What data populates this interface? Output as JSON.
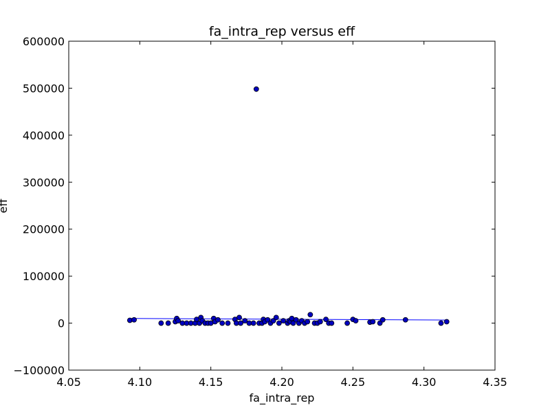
{
  "chart_data": {
    "type": "scatter",
    "title": "fa_intra_rep versus eff",
    "xlabel": "fa_intra_rep",
    "ylabel": "eff",
    "xlim": [
      4.05,
      4.35
    ],
    "ylim": [
      -100000,
      600000
    ],
    "x_ticks": [
      "4.05",
      "4.10",
      "4.15",
      "4.20",
      "4.25",
      "4.30",
      "4.35"
    ],
    "y_ticks": [
      "600000",
      "500000",
      "400000",
      "300000",
      "200000",
      "100000",
      "0",
      "−100000"
    ],
    "grid": false,
    "colors": {
      "marker": "#0000bf",
      "marker_edge": "#000000",
      "line": "#0000ff"
    },
    "fit_line": {
      "x": [
        4.093,
        4.316
      ],
      "y": [
        10000,
        6500
      ]
    },
    "points": [
      {
        "x": 4.093,
        "y": 6000
      },
      {
        "x": 4.096,
        "y": 7000
      },
      {
        "x": 4.115,
        "y": 0
      },
      {
        "x": 4.12,
        "y": 0
      },
      {
        "x": 4.125,
        "y": 3000
      },
      {
        "x": 4.126,
        "y": 10000
      },
      {
        "x": 4.127,
        "y": 5000
      },
      {
        "x": 4.13,
        "y": 0
      },
      {
        "x": 4.133,
        "y": 0
      },
      {
        "x": 4.136,
        "y": 0
      },
      {
        "x": 4.139,
        "y": 0
      },
      {
        "x": 4.14,
        "y": 8000
      },
      {
        "x": 4.142,
        "y": 0
      },
      {
        "x": 4.143,
        "y": 12000
      },
      {
        "x": 4.144,
        "y": 5000
      },
      {
        "x": 4.146,
        "y": 0
      },
      {
        "x": 4.148,
        "y": 0
      },
      {
        "x": 4.15,
        "y": 0
      },
      {
        "x": 4.152,
        "y": 10000
      },
      {
        "x": 4.153,
        "y": 3000
      },
      {
        "x": 4.155,
        "y": 7000
      },
      {
        "x": 4.158,
        "y": 0
      },
      {
        "x": 4.162,
        "y": 0
      },
      {
        "x": 4.167,
        "y": 8000
      },
      {
        "x": 4.168,
        "y": 0
      },
      {
        "x": 4.17,
        "y": 12000
      },
      {
        "x": 4.171,
        "y": 0
      },
      {
        "x": 4.174,
        "y": 5000
      },
      {
        "x": 4.177,
        "y": 0
      },
      {
        "x": 4.18,
        "y": 0
      },
      {
        "x": 4.182,
        "y": 498000
      },
      {
        "x": 4.184,
        "y": 0
      },
      {
        "x": 4.186,
        "y": 0
      },
      {
        "x": 4.187,
        "y": 8000
      },
      {
        "x": 4.188,
        "y": 3000
      },
      {
        "x": 4.19,
        "y": 7000
      },
      {
        "x": 4.192,
        "y": 0
      },
      {
        "x": 4.194,
        "y": 5000
      },
      {
        "x": 4.196,
        "y": 12000
      },
      {
        "x": 4.198,
        "y": 0
      },
      {
        "x": 4.201,
        "y": 5000
      },
      {
        "x": 4.204,
        "y": 0
      },
      {
        "x": 4.205,
        "y": 5000
      },
      {
        "x": 4.206,
        "y": 3000
      },
      {
        "x": 4.207,
        "y": 10000
      },
      {
        "x": 4.208,
        "y": 0
      },
      {
        "x": 4.21,
        "y": 7000
      },
      {
        "x": 4.212,
        "y": 0
      },
      {
        "x": 4.214,
        "y": 5000
      },
      {
        "x": 4.216,
        "y": 0
      },
      {
        "x": 4.218,
        "y": 3000
      },
      {
        "x": 4.22,
        "y": 18000
      },
      {
        "x": 4.223,
        "y": 0
      },
      {
        "x": 4.225,
        "y": 0
      },
      {
        "x": 4.227,
        "y": 3000
      },
      {
        "x": 4.231,
        "y": 8000
      },
      {
        "x": 4.233,
        "y": 0
      },
      {
        "x": 4.235,
        "y": 0
      },
      {
        "x": 4.246,
        "y": 0
      },
      {
        "x": 4.25,
        "y": 8000
      },
      {
        "x": 4.252,
        "y": 5000
      },
      {
        "x": 4.262,
        "y": 2000
      },
      {
        "x": 4.264,
        "y": 3000
      },
      {
        "x": 4.269,
        "y": 0
      },
      {
        "x": 4.271,
        "y": 7000
      },
      {
        "x": 4.287,
        "y": 7000
      },
      {
        "x": 4.312,
        "y": 0
      },
      {
        "x": 4.316,
        "y": 3000
      }
    ]
  }
}
